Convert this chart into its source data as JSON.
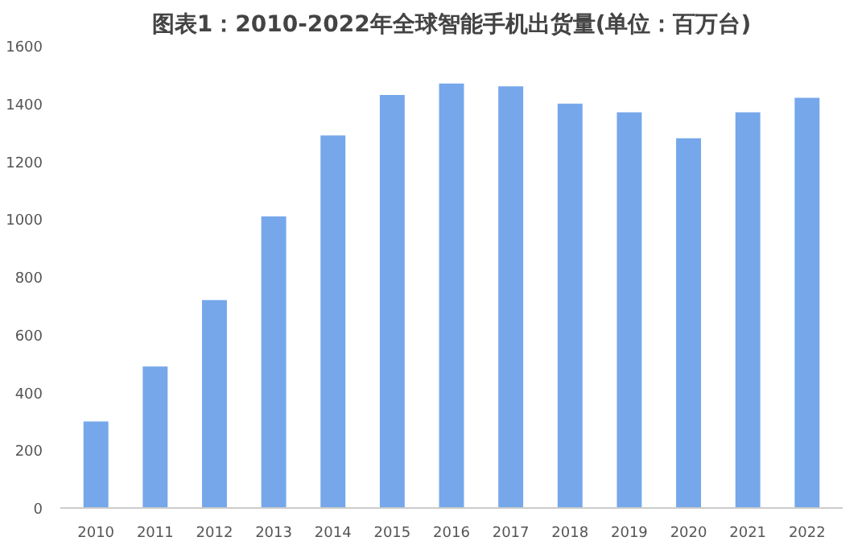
{
  "chart_data": {
    "type": "bar",
    "title": "图表1：2010-2022年全球智能手机出货量(单位：百万台)",
    "categories": [
      "2010",
      "2011",
      "2012",
      "2013",
      "2014",
      "2015",
      "2016",
      "2017",
      "2018",
      "2019",
      "2020",
      "2021",
      "2022"
    ],
    "values": [
      300,
      490,
      720,
      1010,
      1290,
      1430,
      1470,
      1460,
      1400,
      1370,
      1280,
      1370,
      1420
    ],
    "color": "#75a7ea",
    "ylim": [
      0,
      1600
    ],
    "yticks": [
      0,
      200,
      400,
      600,
      800,
      1000,
      1200,
      1400,
      1600
    ],
    "grid": false
  }
}
